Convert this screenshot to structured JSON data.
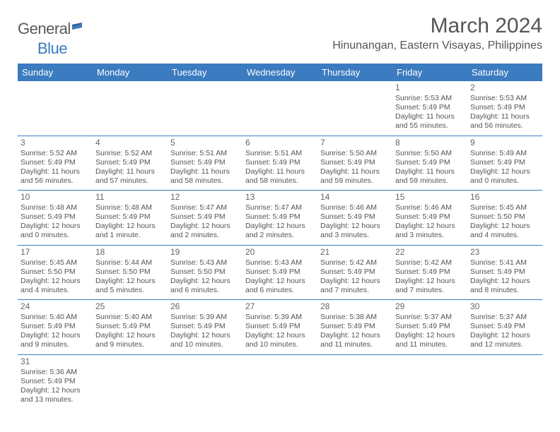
{
  "logo": {
    "word1": "General",
    "word2": "Blue"
  },
  "title": "March 2024",
  "location": "Hinunangan, Eastern Visayas, Philippines",
  "colors": {
    "header_bg": "#3b7bbf",
    "header_text": "#ffffff",
    "body_text": "#555555",
    "row_border": "#3b7bbf",
    "page_bg": "#ffffff"
  },
  "typography": {
    "title_fontsize": 30,
    "location_fontsize": 16,
    "header_fontsize": 13,
    "cell_fontsize": 10.5,
    "daynum_fontsize": 12
  },
  "day_headers": [
    "Sunday",
    "Monday",
    "Tuesday",
    "Wednesday",
    "Thursday",
    "Friday",
    "Saturday"
  ],
  "weeks": [
    [
      null,
      null,
      null,
      null,
      null,
      {
        "n": "1",
        "sunrise": "Sunrise: 5:53 AM",
        "sunset": "Sunset: 5:49 PM",
        "daylight": "Daylight: 11 hours and 55 minutes."
      },
      {
        "n": "2",
        "sunrise": "Sunrise: 5:53 AM",
        "sunset": "Sunset: 5:49 PM",
        "daylight": "Daylight: 11 hours and 56 minutes."
      }
    ],
    [
      {
        "n": "3",
        "sunrise": "Sunrise: 5:52 AM",
        "sunset": "Sunset: 5:49 PM",
        "daylight": "Daylight: 11 hours and 56 minutes."
      },
      {
        "n": "4",
        "sunrise": "Sunrise: 5:52 AM",
        "sunset": "Sunset: 5:49 PM",
        "daylight": "Daylight: 11 hours and 57 minutes."
      },
      {
        "n": "5",
        "sunrise": "Sunrise: 5:51 AM",
        "sunset": "Sunset: 5:49 PM",
        "daylight": "Daylight: 11 hours and 58 minutes."
      },
      {
        "n": "6",
        "sunrise": "Sunrise: 5:51 AM",
        "sunset": "Sunset: 5:49 PM",
        "daylight": "Daylight: 11 hours and 58 minutes."
      },
      {
        "n": "7",
        "sunrise": "Sunrise: 5:50 AM",
        "sunset": "Sunset: 5:49 PM",
        "daylight": "Daylight: 11 hours and 59 minutes."
      },
      {
        "n": "8",
        "sunrise": "Sunrise: 5:50 AM",
        "sunset": "Sunset: 5:49 PM",
        "daylight": "Daylight: 11 hours and 59 minutes."
      },
      {
        "n": "9",
        "sunrise": "Sunrise: 5:49 AM",
        "sunset": "Sunset: 5:49 PM",
        "daylight": "Daylight: 12 hours and 0 minutes."
      }
    ],
    [
      {
        "n": "10",
        "sunrise": "Sunrise: 5:48 AM",
        "sunset": "Sunset: 5:49 PM",
        "daylight": "Daylight: 12 hours and 0 minutes."
      },
      {
        "n": "11",
        "sunrise": "Sunrise: 5:48 AM",
        "sunset": "Sunset: 5:49 PM",
        "daylight": "Daylight: 12 hours and 1 minute."
      },
      {
        "n": "12",
        "sunrise": "Sunrise: 5:47 AM",
        "sunset": "Sunset: 5:49 PM",
        "daylight": "Daylight: 12 hours and 2 minutes."
      },
      {
        "n": "13",
        "sunrise": "Sunrise: 5:47 AM",
        "sunset": "Sunset: 5:49 PM",
        "daylight": "Daylight: 12 hours and 2 minutes."
      },
      {
        "n": "14",
        "sunrise": "Sunrise: 5:46 AM",
        "sunset": "Sunset: 5:49 PM",
        "daylight": "Daylight: 12 hours and 3 minutes."
      },
      {
        "n": "15",
        "sunrise": "Sunrise: 5:46 AM",
        "sunset": "Sunset: 5:49 PM",
        "daylight": "Daylight: 12 hours and 3 minutes."
      },
      {
        "n": "16",
        "sunrise": "Sunrise: 5:45 AM",
        "sunset": "Sunset: 5:50 PM",
        "daylight": "Daylight: 12 hours and 4 minutes."
      }
    ],
    [
      {
        "n": "17",
        "sunrise": "Sunrise: 5:45 AM",
        "sunset": "Sunset: 5:50 PM",
        "daylight": "Daylight: 12 hours and 4 minutes."
      },
      {
        "n": "18",
        "sunrise": "Sunrise: 5:44 AM",
        "sunset": "Sunset: 5:50 PM",
        "daylight": "Daylight: 12 hours and 5 minutes."
      },
      {
        "n": "19",
        "sunrise": "Sunrise: 5:43 AM",
        "sunset": "Sunset: 5:50 PM",
        "daylight": "Daylight: 12 hours and 6 minutes."
      },
      {
        "n": "20",
        "sunrise": "Sunrise: 5:43 AM",
        "sunset": "Sunset: 5:49 PM",
        "daylight": "Daylight: 12 hours and 6 minutes."
      },
      {
        "n": "21",
        "sunrise": "Sunrise: 5:42 AM",
        "sunset": "Sunset: 5:49 PM",
        "daylight": "Daylight: 12 hours and 7 minutes."
      },
      {
        "n": "22",
        "sunrise": "Sunrise: 5:42 AM",
        "sunset": "Sunset: 5:49 PM",
        "daylight": "Daylight: 12 hours and 7 minutes."
      },
      {
        "n": "23",
        "sunrise": "Sunrise: 5:41 AM",
        "sunset": "Sunset: 5:49 PM",
        "daylight": "Daylight: 12 hours and 8 minutes."
      }
    ],
    [
      {
        "n": "24",
        "sunrise": "Sunrise: 5:40 AM",
        "sunset": "Sunset: 5:49 PM",
        "daylight": "Daylight: 12 hours and 9 minutes."
      },
      {
        "n": "25",
        "sunrise": "Sunrise: 5:40 AM",
        "sunset": "Sunset: 5:49 PM",
        "daylight": "Daylight: 12 hours and 9 minutes."
      },
      {
        "n": "26",
        "sunrise": "Sunrise: 5:39 AM",
        "sunset": "Sunset: 5:49 PM",
        "daylight": "Daylight: 12 hours and 10 minutes."
      },
      {
        "n": "27",
        "sunrise": "Sunrise: 5:39 AM",
        "sunset": "Sunset: 5:49 PM",
        "daylight": "Daylight: 12 hours and 10 minutes."
      },
      {
        "n": "28",
        "sunrise": "Sunrise: 5:38 AM",
        "sunset": "Sunset: 5:49 PM",
        "daylight": "Daylight: 12 hours and 11 minutes."
      },
      {
        "n": "29",
        "sunrise": "Sunrise: 5:37 AM",
        "sunset": "Sunset: 5:49 PM",
        "daylight": "Daylight: 12 hours and 11 minutes."
      },
      {
        "n": "30",
        "sunrise": "Sunrise: 5:37 AM",
        "sunset": "Sunset: 5:49 PM",
        "daylight": "Daylight: 12 hours and 12 minutes."
      }
    ],
    [
      {
        "n": "31",
        "sunrise": "Sunrise: 5:36 AM",
        "sunset": "Sunset: 5:49 PM",
        "daylight": "Daylight: 12 hours and 13 minutes."
      },
      null,
      null,
      null,
      null,
      null,
      null
    ]
  ]
}
